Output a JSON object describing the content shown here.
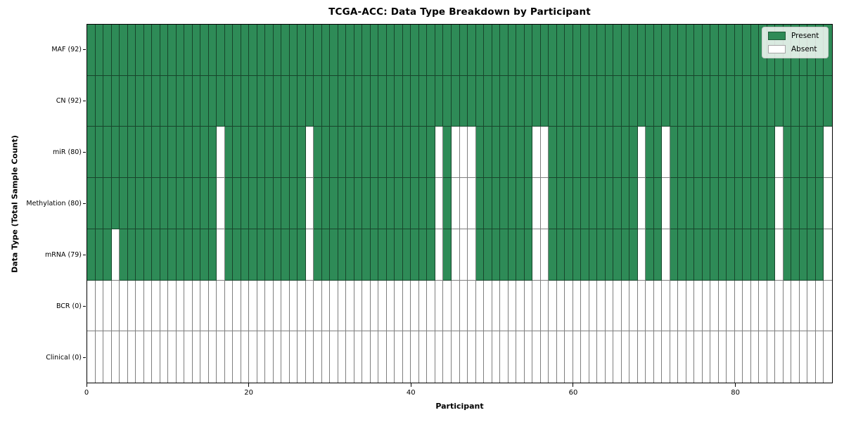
{
  "chart_data": {
    "type": "heatmap",
    "title": "TCGA-ACC: Data Type Breakdown by Participant",
    "xlabel": "Participant",
    "ylabel": "Data Type (Total Sample Count)",
    "n_columns": 92,
    "x_range": [
      0,
      92
    ],
    "x_ticks": [
      0,
      20,
      40,
      60,
      80
    ],
    "grid": true,
    "legend": {
      "position": "upper-right",
      "entries": [
        {
          "label": "Present",
          "color": "#2e8b57"
        },
        {
          "label": "Absent",
          "color": "#ffffff"
        }
      ]
    },
    "rows": [
      {
        "label": "MAF (92)",
        "data_type": "MAF",
        "present_count": 92,
        "all_absent": false,
        "absent_columns": []
      },
      {
        "label": "CN (92)",
        "data_type": "CN",
        "present_count": 92,
        "all_absent": false,
        "absent_columns": []
      },
      {
        "label": "miR (80)",
        "data_type": "miR",
        "present_count": 80,
        "all_absent": false,
        "absent_columns": [
          16,
          27,
          43,
          45,
          46,
          47,
          55,
          56,
          68,
          71,
          85,
          91
        ]
      },
      {
        "label": "Methylation (80)",
        "data_type": "Methylation",
        "present_count": 80,
        "all_absent": false,
        "absent_columns": [
          16,
          27,
          43,
          45,
          46,
          47,
          55,
          56,
          68,
          71,
          85,
          91
        ]
      },
      {
        "label": "mRNA (79)",
        "data_type": "mRNA",
        "present_count": 79,
        "all_absent": false,
        "absent_columns": [
          3,
          16,
          27,
          43,
          45,
          46,
          47,
          55,
          56,
          68,
          71,
          85,
          91
        ]
      },
      {
        "label": "BCR (0)",
        "data_type": "BCR",
        "present_count": 0,
        "all_absent": true,
        "absent_columns": []
      },
      {
        "label": "Clinical (0)",
        "data_type": "Clinical",
        "present_count": 0,
        "all_absent": true,
        "absent_columns": []
      }
    ],
    "colors": {
      "present": "#2e8b57",
      "absent": "#ffffff",
      "cell_edge": "rgba(0,0,0,0.5)",
      "axis": "#000000"
    }
  }
}
